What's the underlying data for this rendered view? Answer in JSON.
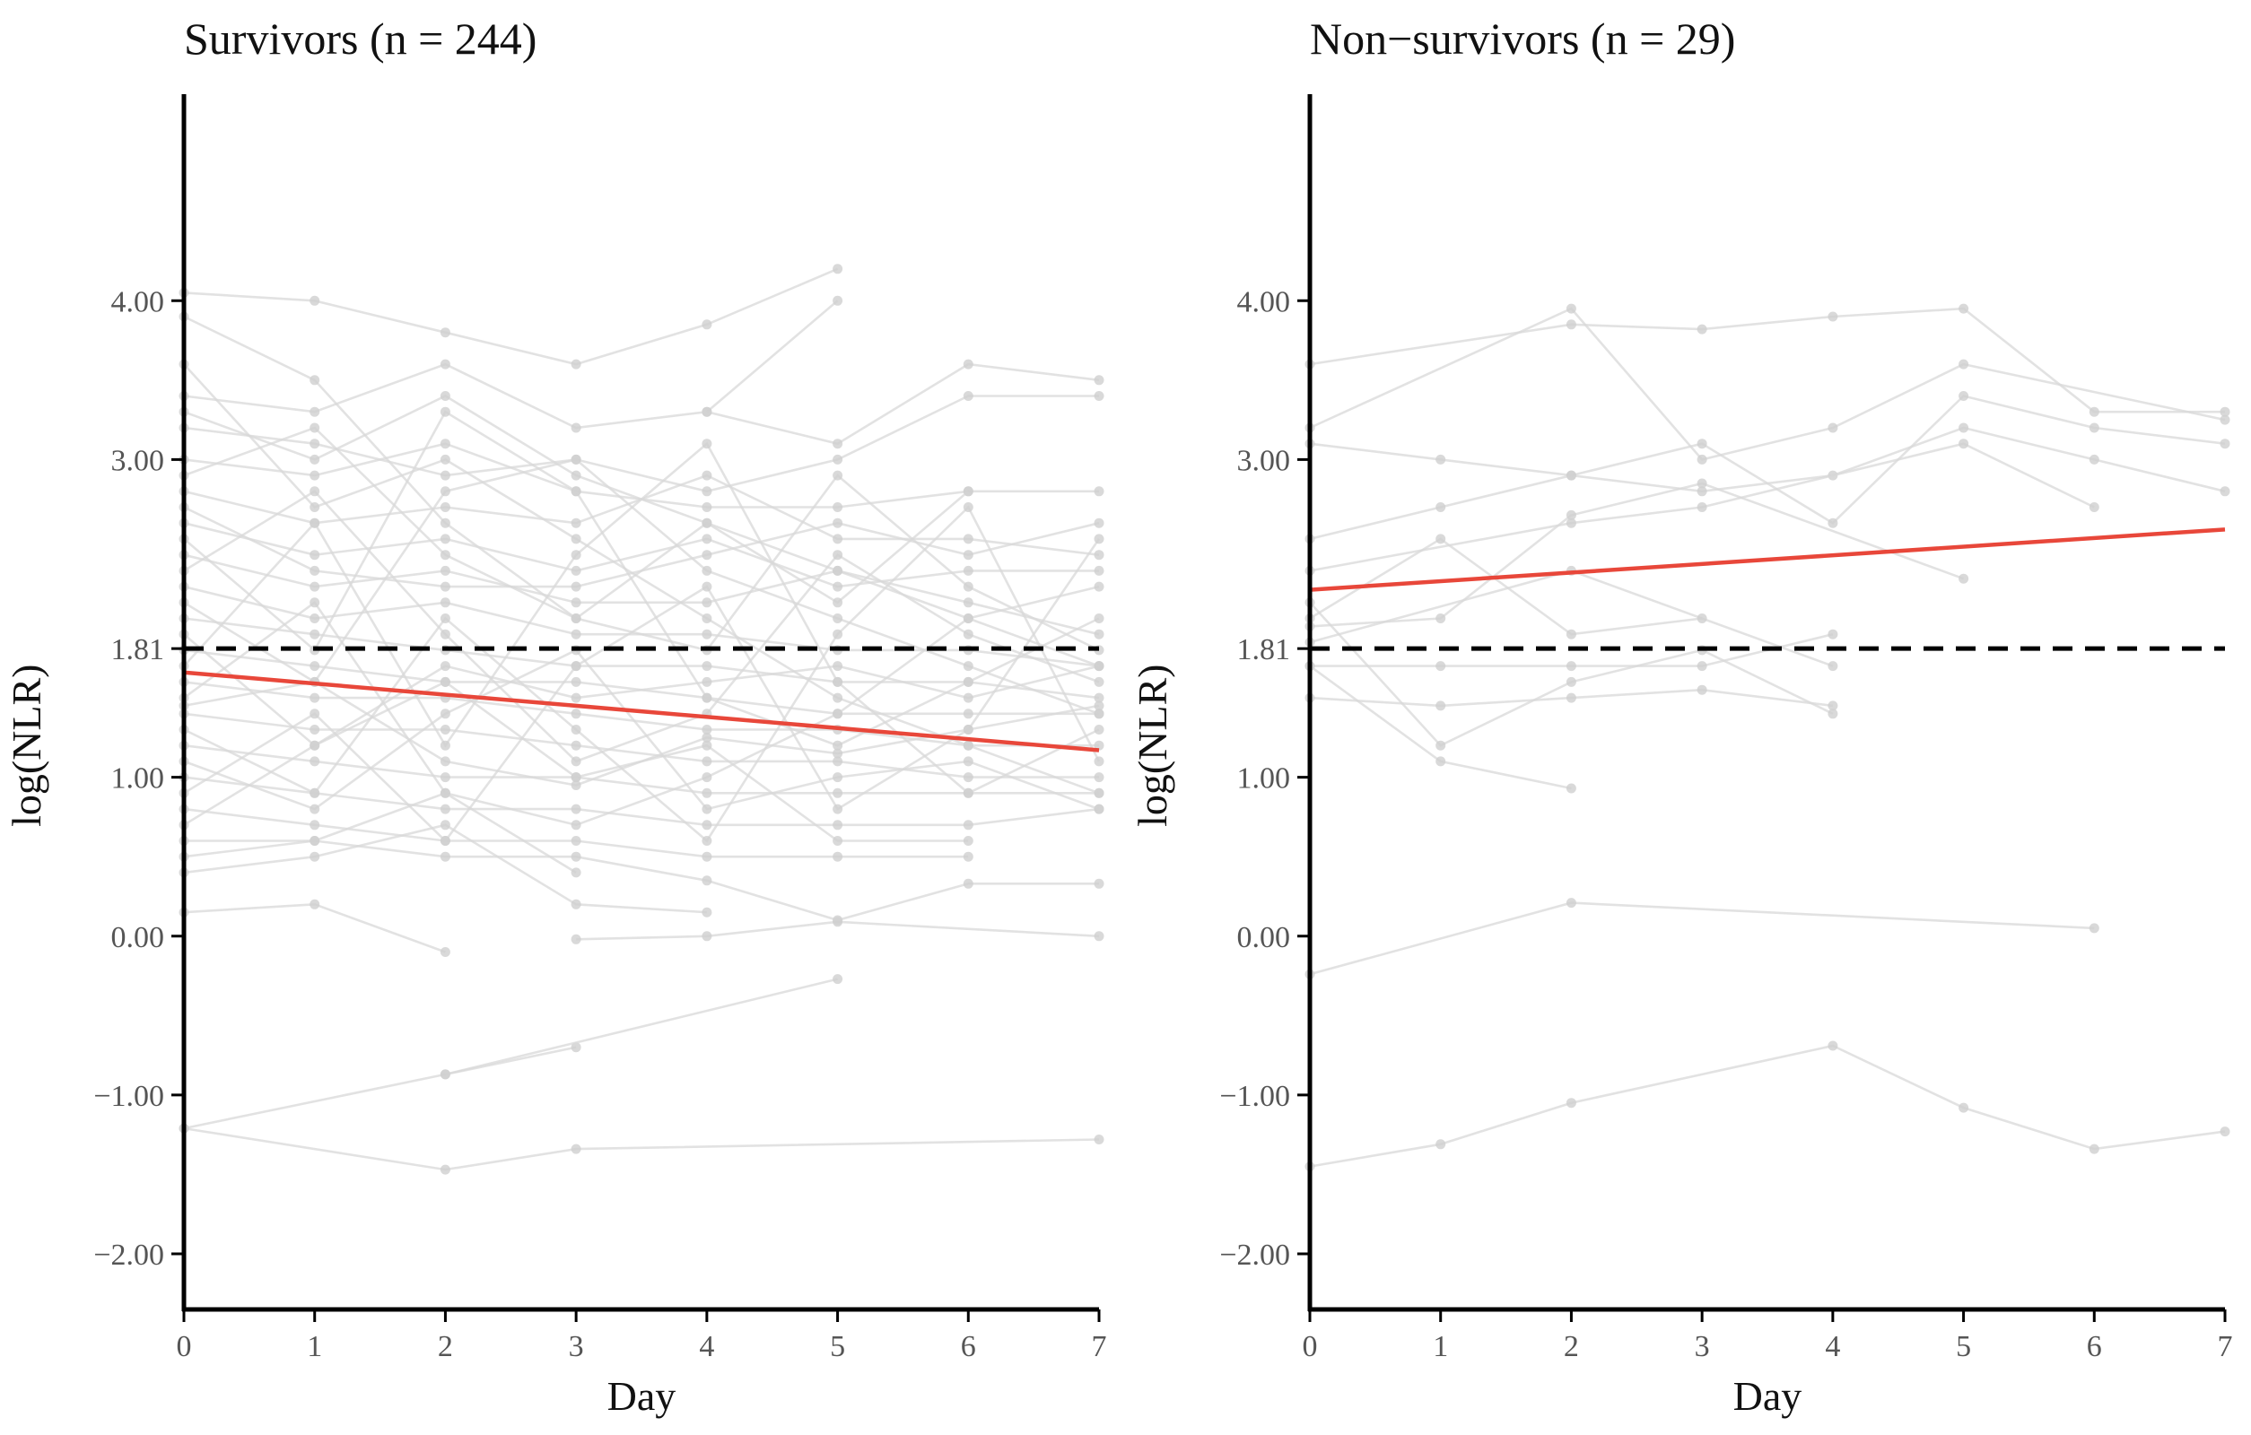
{
  "chart_data": [
    {
      "type": "line",
      "title": "Survivors (n = 244)",
      "xlabel": "Day",
      "ylabel": "log(NLR)",
      "x_ticks": [
        "0",
        "1",
        "2",
        "3",
        "4",
        "5",
        "6",
        "7"
      ],
      "y_ticks": [
        "−2.00",
        "−1.00",
        "0.00",
        "1.00",
        "1.81",
        "3.00",
        "4.00"
      ],
      "xlim": [
        0,
        7
      ],
      "ylim": [
        -2.35,
        5.3
      ],
      "reference_line": {
        "y": 1.81,
        "style": "dashed",
        "color": "#000000"
      },
      "trend_line": {
        "x": [
          0,
          7
        ],
        "y": [
          1.66,
          1.17
        ],
        "color": "#e8473a"
      },
      "trajectory_color": "#d8d8d8",
      "series": [
        {
          "x": [
            0,
            2,
            3,
            7
          ],
          "y": [
            -1.21,
            -1.47,
            -1.34,
            -1.28
          ]
        },
        {
          "x": [
            0,
            2,
            3
          ],
          "y": [
            -1.21,
            -0.87,
            -0.7
          ]
        },
        {
          "x": [
            2,
            5
          ],
          "y": [
            -0.87,
            -0.27
          ]
        },
        {
          "x": [
            0,
            1,
            2
          ],
          "y": [
            0.15,
            0.2,
            -0.1
          ]
        },
        {
          "x": [
            3,
            4,
            5,
            7
          ],
          "y": [
            -0.02,
            0.0,
            0.09,
            0.0
          ]
        },
        {
          "x": [
            0,
            1,
            2,
            3,
            4,
            5
          ],
          "y": [
            4.05,
            4.0,
            3.8,
            3.6,
            3.85,
            4.2
          ]
        },
        {
          "x": [
            4,
            5
          ],
          "y": [
            3.3,
            4.0
          ]
        },
        {
          "x": [
            0,
            1,
            2,
            3,
            4,
            5,
            6,
            7
          ],
          "y": [
            3.4,
            3.3,
            3.6,
            3.2,
            3.3,
            3.1,
            3.6,
            3.5
          ]
        },
        {
          "x": [
            0,
            1,
            2,
            3,
            4,
            5,
            6,
            7
          ],
          "y": [
            3.2,
            3.1,
            2.9,
            3.0,
            2.8,
            3.0,
            3.4,
            3.4
          ]
        },
        {
          "x": [
            0,
            1,
            2,
            3,
            4,
            5,
            6,
            7
          ],
          "y": [
            3.0,
            2.9,
            3.1,
            2.8,
            2.7,
            2.7,
            2.8,
            2.8
          ]
        },
        {
          "x": [
            0,
            1,
            2,
            3,
            4,
            5,
            6,
            7
          ],
          "y": [
            2.8,
            2.6,
            2.7,
            2.6,
            2.9,
            2.5,
            2.5,
            2.4
          ]
        },
        {
          "x": [
            0,
            1,
            2,
            3,
            4,
            5,
            6,
            7
          ],
          "y": [
            2.6,
            2.4,
            2.5,
            2.3,
            2.5,
            2.2,
            2.3,
            2.3
          ]
        },
        {
          "x": [
            0,
            1,
            2,
            3,
            4,
            5,
            6,
            7
          ],
          "y": [
            2.4,
            2.2,
            2.3,
            2.1,
            2.1,
            2.3,
            2.1,
            1.9
          ]
        },
        {
          "x": [
            0,
            1,
            2,
            3,
            4,
            5,
            6,
            7
          ],
          "y": [
            2.2,
            2.0,
            2.1,
            1.9,
            1.9,
            1.8,
            1.8,
            1.7
          ]
        },
        {
          "x": [
            0,
            1,
            2,
            3,
            4,
            5,
            6,
            7
          ],
          "y": [
            2.0,
            1.9,
            1.8,
            1.7,
            1.7,
            1.6,
            1.6,
            1.5
          ]
        },
        {
          "x": [
            0,
            1,
            2,
            3,
            4,
            5,
            6,
            7
          ],
          "y": [
            1.8,
            1.7,
            1.6,
            1.6,
            1.5,
            1.4,
            1.4,
            1.4
          ]
        },
        {
          "x": [
            0,
            1,
            2,
            3,
            4,
            5,
            6,
            7
          ],
          "y": [
            1.6,
            1.5,
            1.5,
            1.4,
            1.3,
            1.3,
            1.2,
            1.2
          ]
        },
        {
          "x": [
            0,
            1,
            2,
            3,
            4,
            5,
            6,
            7
          ],
          "y": [
            1.4,
            1.3,
            1.3,
            1.2,
            1.1,
            1.1,
            1.0,
            1.0
          ]
        },
        {
          "x": [
            0,
            1,
            2,
            3,
            4,
            5,
            6,
            7
          ],
          "y": [
            1.2,
            1.1,
            1.0,
            1.0,
            0.9,
            0.9,
            0.9,
            0.9
          ]
        },
        {
          "x": [
            0,
            1,
            2,
            3,
            4,
            5,
            6,
            7
          ],
          "y": [
            1.0,
            0.9,
            0.8,
            0.8,
            0.7,
            0.7,
            0.7,
            0.8
          ]
        },
        {
          "x": [
            0,
            1,
            2,
            3,
            4,
            5,
            6
          ],
          "y": [
            0.8,
            0.7,
            0.6,
            0.6,
            0.5,
            0.5,
            0.5
          ]
        },
        {
          "x": [
            0,
            1,
            2,
            3,
            4,
            5,
            6,
            7
          ],
          "y": [
            0.6,
            0.6,
            0.5,
            0.5,
            0.35,
            0.1,
            0.33,
            0.33
          ]
        },
        {
          "x": [
            0,
            1,
            2,
            3,
            4
          ],
          "y": [
            0.4,
            0.5,
            0.7,
            0.2,
            0.15
          ]
        },
        {
          "x": [
            0,
            1,
            2,
            3,
            4,
            5,
            6,
            7
          ],
          "y": [
            2.9,
            3.2,
            2.4,
            2.0,
            1.8,
            2.9,
            2.2,
            1.8
          ]
        },
        {
          "x": [
            0,
            1,
            2,
            3,
            4,
            5,
            6,
            7
          ],
          "y": [
            2.5,
            1.8,
            3.3,
            2.8,
            1.5,
            1.2,
            1.6,
            2.0
          ]
        },
        {
          "x": [
            0,
            1,
            2,
            3,
            4,
            5,
            6,
            7
          ],
          "y": [
            1.7,
            2.6,
            1.2,
            2.4,
            3.1,
            1.6,
            0.9,
            1.3
          ]
        },
        {
          "x": [
            0,
            1,
            2,
            3,
            4,
            5,
            6,
            7
          ],
          "y": [
            1.3,
            0.9,
            2.0,
            1.3,
            0.6,
            1.9,
            2.7,
            1.1
          ]
        },
        {
          "x": [
            0,
            1,
            2,
            3,
            4,
            5,
            6,
            7
          ],
          "y": [
            0.9,
            1.4,
            0.6,
            1.7,
            2.2,
            0.8,
            1.3,
            2.5
          ]
        },
        {
          "x": [
            0,
            1,
            2,
            3,
            4,
            5,
            6,
            7
          ],
          "y": [
            2.3,
            2.8,
            1.9,
            1.1,
            1.4,
            2.4,
            1.9,
            1.6
          ]
        },
        {
          "x": [
            0,
            1,
            2,
            3,
            4,
            5,
            6,
            7
          ],
          "y": [
            3.6,
            2.7,
            3.0,
            2.5,
            2.0,
            1.5,
            1.2,
            0.9
          ]
        },
        {
          "x": [
            0,
            1,
            2,
            3,
            4,
            5,
            6
          ],
          "y": [
            0.7,
            1.2,
            1.6,
            1.0,
            1.2,
            0.6,
            0.6
          ]
        },
        {
          "x": [
            0,
            1,
            2,
            3,
            4,
            5,
            6
          ],
          "y": [
            3.9,
            3.5,
            2.6,
            2.0,
            2.6,
            2.1,
            2.8
          ]
        },
        {
          "x": [
            0,
            1,
            2,
            3,
            4,
            5,
            6,
            7
          ],
          "y": [
            2.1,
            1.6,
            2.8,
            3.0,
            2.3,
            2.0,
            1.7,
            1.4
          ]
        },
        {
          "x": [
            0,
            1,
            2,
            3,
            4,
            5,
            6,
            7
          ],
          "y": [
            1.5,
            2.1,
            0.9,
            0.7,
            1.0,
            1.4,
            2.0,
            2.2
          ]
        },
        {
          "x": [
            0,
            1,
            2,
            3,
            4,
            5,
            6,
            7
          ],
          "y": [
            1.1,
            0.8,
            1.4,
            1.8,
            0.8,
            1.0,
            1.1,
            0.8
          ]
        },
        {
          "x": [
            0,
            1,
            2,
            3
          ],
          "y": [
            0.5,
            0.6,
            0.9,
            0.4
          ]
        },
        {
          "x": [
            0,
            1,
            2,
            3,
            4,
            5,
            6,
            7
          ],
          "y": [
            2.7,
            2.3,
            2.2,
            2.2,
            2.4,
            2.6,
            2.4,
            2.6
          ]
        },
        {
          "x": [
            0,
            1,
            2,
            3,
            4,
            5,
            6,
            7
          ],
          "y": [
            1.9,
            1.2,
            1.7,
            1.5,
            1.6,
            1.7,
            1.5,
            1.7
          ]
        },
        {
          "x": [
            0,
            1,
            2,
            3,
            4,
            5,
            6,
            7
          ],
          "y": [
            3.3,
            3.0,
            3.4,
            2.9,
            2.6,
            2.3,
            2.0,
            1.7
          ]
        },
        {
          "x": [
            0,
            1,
            2,
            3,
            4,
            5,
            6,
            7
          ],
          "y": [
            1.45,
            1.6,
            1.1,
            0.95,
            1.25,
            1.15,
            1.3,
            1.45
          ]
        }
      ]
    },
    {
      "type": "line",
      "title": "Non−survivors (n = 29)",
      "xlabel": "Day",
      "ylabel": "log(NLR)",
      "x_ticks": [
        "0",
        "1",
        "2",
        "3",
        "4",
        "5",
        "6",
        "7"
      ],
      "y_ticks": [
        "−2.00",
        "−1.00",
        "0.00",
        "1.00",
        "1.81",
        "3.00",
        "4.00"
      ],
      "xlim": [
        0,
        7
      ],
      "ylim": [
        -2.35,
        5.3
      ],
      "reference_line": {
        "y": 1.81,
        "style": "dashed",
        "color": "#000000"
      },
      "trend_line": {
        "x": [
          0,
          7
        ],
        "y": [
          2.18,
          2.56
        ],
        "color": "#e8473a"
      },
      "trajectory_color": "#d8d8d8",
      "series": [
        {
          "x": [
            0,
            1,
            2,
            4,
            5,
            6,
            7
          ],
          "y": [
            -1.45,
            -1.31,
            -1.05,
            -0.69,
            -1.08,
            -1.34,
            -1.23
          ]
        },
        {
          "x": [
            0,
            2,
            6
          ],
          "y": [
            -0.24,
            0.21,
            0.05
          ]
        },
        {
          "x": [
            0,
            2,
            3,
            4,
            5,
            6,
            7
          ],
          "y": [
            3.6,
            3.85,
            3.82,
            3.9,
            3.95,
            3.3,
            3.3
          ]
        },
        {
          "x": [
            0,
            2,
            3,
            4,
            5,
            7
          ],
          "y": [
            3.2,
            3.95,
            3.0,
            3.2,
            3.6,
            3.25
          ]
        },
        {
          "x": [
            0,
            1,
            2,
            3,
            4,
            5,
            6,
            7
          ],
          "y": [
            3.1,
            3.0,
            2.9,
            3.1,
            2.6,
            3.4,
            3.2,
            3.1
          ]
        },
        {
          "x": [
            0,
            1,
            2,
            3,
            4,
            5,
            6,
            7
          ],
          "y": [
            2.5,
            2.7,
            2.9,
            2.8,
            2.9,
            3.2,
            3.0,
            2.8
          ]
        },
        {
          "x": [
            0,
            2,
            3,
            5,
            6
          ],
          "y": [
            2.3,
            2.6,
            2.7,
            3.1,
            2.7
          ]
        },
        {
          "x": [
            0,
            1,
            2,
            3,
            5
          ],
          "y": [
            1.95,
            2.0,
            2.65,
            2.85,
            2.25
          ]
        },
        {
          "x": [
            0,
            1,
            2,
            3,
            4
          ],
          "y": [
            1.7,
            1.7,
            1.7,
            1.7,
            1.9
          ]
        },
        {
          "x": [
            0,
            1,
            2,
            3,
            4
          ],
          "y": [
            1.5,
            1.45,
            1.5,
            1.55,
            1.45
          ]
        },
        {
          "x": [
            0,
            1,
            2
          ],
          "y": [
            1.7,
            1.1,
            0.93
          ]
        },
        {
          "x": [
            0,
            1,
            2,
            3,
            4
          ],
          "y": [
            2.1,
            1.2,
            1.6,
            1.8,
            1.4
          ]
        },
        {
          "x": [
            0,
            2,
            4
          ],
          "y": [
            1.85,
            2.3,
            1.7
          ]
        },
        {
          "x": [
            0,
            1,
            2,
            3
          ],
          "y": [
            2.0,
            2.5,
            1.9,
            2.0
          ]
        }
      ]
    }
  ]
}
